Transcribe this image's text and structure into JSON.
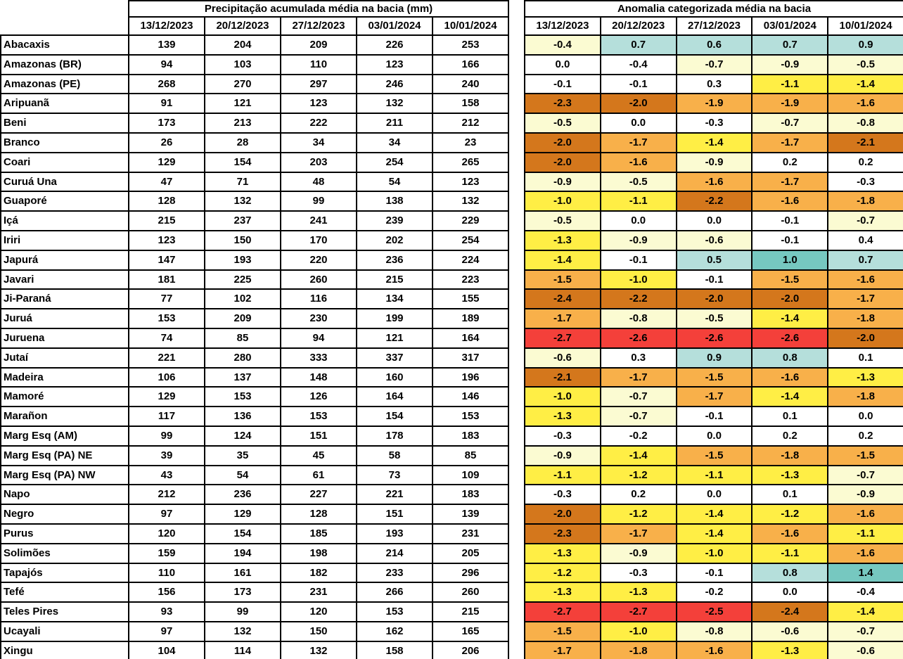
{
  "chart_data": [
    {
      "type": "table",
      "title": "Precipitação acumulada média na bacia (mm)",
      "columns": [
        "13/12/2023",
        "20/12/2023",
        "27/12/2023",
        "03/01/2024",
        "10/01/2024"
      ],
      "row_labels": [
        "Abacaxis",
        "Amazonas (BR)",
        "Amazonas (PE)",
        "Aripuanã",
        "Beni",
        "Branco",
        "Coari",
        "Curuá Una",
        "Guaporé",
        "Içá",
        "Iriri",
        "Japurá",
        "Javari",
        "Ji-Paraná",
        "Juruá",
        "Juruena",
        "Jutaí",
        "Madeira",
        "Mamoré",
        "Marañon",
        "Marg Esq (AM)",
        "Marg Esq (PA) NE",
        "Marg Esq (PA) NW",
        "Napo",
        "Negro",
        "Purus",
        "Solimões",
        "Tapajós",
        "Tefé",
        "Teles Pires",
        "Ucayali",
        "Xingu"
      ],
      "values": [
        [
          139,
          204,
          209,
          226,
          253
        ],
        [
          94,
          103,
          110,
          123,
          166
        ],
        [
          268,
          270,
          297,
          246,
          240
        ],
        [
          91,
          121,
          123,
          132,
          158
        ],
        [
          173,
          213,
          222,
          211,
          212
        ],
        [
          26,
          28,
          34,
          34,
          23
        ],
        [
          129,
          154,
          203,
          254,
          265
        ],
        [
          47,
          71,
          48,
          54,
          123
        ],
        [
          128,
          132,
          99,
          138,
          132
        ],
        [
          215,
          237,
          241,
          239,
          229
        ],
        [
          123,
          150,
          170,
          202,
          254
        ],
        [
          147,
          193,
          220,
          236,
          224
        ],
        [
          181,
          225,
          260,
          215,
          223
        ],
        [
          77,
          102,
          116,
          134,
          155
        ],
        [
          153,
          209,
          230,
          199,
          189
        ],
        [
          74,
          85,
          94,
          121,
          164
        ],
        [
          221,
          280,
          333,
          337,
          317
        ],
        [
          106,
          137,
          148,
          160,
          196
        ],
        [
          129,
          153,
          126,
          164,
          146
        ],
        [
          117,
          136,
          153,
          154,
          153
        ],
        [
          99,
          124,
          151,
          178,
          183
        ],
        [
          39,
          35,
          45,
          58,
          85
        ],
        [
          43,
          54,
          61,
          73,
          109
        ],
        [
          212,
          236,
          227,
          221,
          183
        ],
        [
          97,
          129,
          128,
          151,
          139
        ],
        [
          120,
          154,
          185,
          193,
          231
        ],
        [
          159,
          194,
          198,
          214,
          205
        ],
        [
          110,
          161,
          182,
          233,
          296
        ],
        [
          156,
          173,
          231,
          266,
          260
        ],
        [
          93,
          99,
          120,
          153,
          215
        ],
        [
          97,
          132,
          150,
          162,
          165
        ],
        [
          104,
          114,
          132,
          158,
          206
        ]
      ]
    },
    {
      "type": "heatmap",
      "title": "Anomalia categorizada média na bacia",
      "columns": [
        "13/12/2023",
        "20/12/2023",
        "27/12/2023",
        "03/01/2024",
        "10/01/2024"
      ],
      "row_labels": [
        "Abacaxis",
        "Amazonas (BR)",
        "Amazonas (PE)",
        "Aripuanã",
        "Beni",
        "Branco",
        "Coari",
        "Curuá Una",
        "Guaporé",
        "Içá",
        "Iriri",
        "Japurá",
        "Javari",
        "Ji-Paraná",
        "Juruá",
        "Juruena",
        "Jutaí",
        "Madeira",
        "Mamoré",
        "Marañon",
        "Marg Esq (AM)",
        "Marg Esq (PA) NE",
        "Marg Esq (PA) NW",
        "Napo",
        "Negro",
        "Purus",
        "Solimões",
        "Tapajós",
        "Tefé",
        "Teles Pires",
        "Ucayali",
        "Xingu"
      ],
      "values": [
        [
          "-0.4",
          "0.7",
          "0.6",
          "0.7",
          "0.9"
        ],
        [
          "0.0",
          "-0.4",
          "-0.7",
          "-0.9",
          "-0.5"
        ],
        [
          "-0.1",
          "-0.1",
          "0.3",
          "-1.1",
          "-1.4"
        ],
        [
          "-2.3",
          "-2.0",
          "-1.9",
          "-1.9",
          "-1.6"
        ],
        [
          "-0.5",
          "0.0",
          "-0.3",
          "-0.7",
          "-0.8"
        ],
        [
          "-2.0",
          "-1.7",
          "-1.4",
          "-1.7",
          "-2.1"
        ],
        [
          "-2.0",
          "-1.6",
          "-0.9",
          "0.2",
          "0.2"
        ],
        [
          "-0.9",
          "-0.5",
          "-1.6",
          "-1.7",
          "-0.3"
        ],
        [
          "-1.0",
          "-1.1",
          "-2.2",
          "-1.6",
          "-1.8"
        ],
        [
          "-0.5",
          "0.0",
          "0.0",
          "-0.1",
          "-0.7"
        ],
        [
          "-1.3",
          "-0.9",
          "-0.6",
          "-0.1",
          "0.4"
        ],
        [
          "-1.4",
          "-0.1",
          "0.5",
          "1.0",
          "0.7"
        ],
        [
          "-1.5",
          "-1.0",
          "-0.1",
          "-1.5",
          "-1.6"
        ],
        [
          "-2.4",
          "-2.2",
          "-2.0",
          "-2.0",
          "-1.7"
        ],
        [
          "-1.7",
          "-0.8",
          "-0.5",
          "-1.4",
          "-1.8"
        ],
        [
          "-2.7",
          "-2.6",
          "-2.6",
          "-2.6",
          "-2.0"
        ],
        [
          "-0.6",
          "0.3",
          "0.9",
          "0.8",
          "0.1"
        ],
        [
          "-2.1",
          "-1.7",
          "-1.5",
          "-1.6",
          "-1.3"
        ],
        [
          "-1.0",
          "-0.7",
          "-1.7",
          "-1.4",
          "-1.8"
        ],
        [
          "-1.3",
          "-0.7",
          "-0.1",
          "0.1",
          "0.0"
        ],
        [
          "-0.3",
          "-0.2",
          "0.0",
          "0.2",
          "0.2"
        ],
        [
          "-0.9",
          "-1.4",
          "-1.5",
          "-1.8",
          "-1.5"
        ],
        [
          "-1.1",
          "-1.2",
          "-1.1",
          "-1.3",
          "-0.7"
        ],
        [
          "-0.3",
          "0.2",
          "0.0",
          "0.1",
          "-0.9"
        ],
        [
          "-2.0",
          "-1.2",
          "-1.4",
          "-1.2",
          "-1.6"
        ],
        [
          "-2.3",
          "-1.7",
          "-1.4",
          "-1.6",
          "-1.1"
        ],
        [
          "-1.3",
          "-0.9",
          "-1.0",
          "-1.1",
          "-1.6"
        ],
        [
          "-1.2",
          "-0.3",
          "-0.1",
          "0.8",
          "1.4"
        ],
        [
          "-1.3",
          "-1.3",
          "-0.2",
          "0.0",
          "-0.4"
        ],
        [
          "-2.7",
          "-2.7",
          "-2.5",
          "-2.4",
          "-1.4"
        ],
        [
          "-1.5",
          "-1.0",
          "-0.8",
          "-0.6",
          "-0.7"
        ],
        [
          "-1.7",
          "-1.8",
          "-1.6",
          "-1.3",
          "-0.6"
        ]
      ],
      "cell_categories": [
        [
          "C",
          "T",
          "T",
          "T",
          "T"
        ],
        [
          "W",
          "W",
          "C",
          "C",
          "C"
        ],
        [
          "W",
          "W",
          "W",
          "Y",
          "Y"
        ],
        [
          "D",
          "D",
          "O",
          "O",
          "O"
        ],
        [
          "C",
          "W",
          "W",
          "C",
          "C"
        ],
        [
          "D",
          "O",
          "Y",
          "O",
          "D"
        ],
        [
          "D",
          "O",
          "C",
          "W",
          "W"
        ],
        [
          "C",
          "C",
          "O",
          "O",
          "W"
        ],
        [
          "Y",
          "Y",
          "D",
          "O",
          "O"
        ],
        [
          "C",
          "W",
          "W",
          "W",
          "C"
        ],
        [
          "Y",
          "C",
          "C",
          "W",
          "W"
        ],
        [
          "Y",
          "W",
          "T",
          "G",
          "T"
        ],
        [
          "O",
          "Y",
          "W",
          "O",
          "O"
        ],
        [
          "D",
          "D",
          "D",
          "D",
          "O"
        ],
        [
          "O",
          "C",
          "C",
          "Y",
          "O"
        ],
        [
          "R",
          "R",
          "R",
          "R",
          "D"
        ],
        [
          "C",
          "W",
          "T",
          "T",
          "W"
        ],
        [
          "D",
          "O",
          "O",
          "O",
          "Y"
        ],
        [
          "Y",
          "C",
          "O",
          "Y",
          "O"
        ],
        [
          "Y",
          "C",
          "W",
          "W",
          "W"
        ],
        [
          "W",
          "W",
          "W",
          "W",
          "W"
        ],
        [
          "C",
          "Y",
          "O",
          "O",
          "O"
        ],
        [
          "Y",
          "Y",
          "Y",
          "Y",
          "C"
        ],
        [
          "W",
          "W",
          "W",
          "W",
          "C"
        ],
        [
          "D",
          "Y",
          "Y",
          "Y",
          "O"
        ],
        [
          "D",
          "O",
          "Y",
          "O",
          "Y"
        ],
        [
          "Y",
          "C",
          "Y",
          "Y",
          "O"
        ],
        [
          "Y",
          "W",
          "W",
          "T",
          "G"
        ],
        [
          "Y",
          "Y",
          "W",
          "W",
          "W"
        ],
        [
          "R",
          "R",
          "R",
          "D",
          "Y"
        ],
        [
          "O",
          "Y",
          "C",
          "C",
          "C"
        ],
        [
          "O",
          "O",
          "O",
          "Y",
          "C"
        ]
      ],
      "category_colors": {
        "W": "#FFFFFF",
        "C": "#FBFBD2",
        "Y": "#FFEE45",
        "O": "#F8B04A",
        "D": "#D4771C",
        "R": "#F4403A",
        "T": "#B5DFDB",
        "G": "#76C8C0"
      }
    }
  ]
}
